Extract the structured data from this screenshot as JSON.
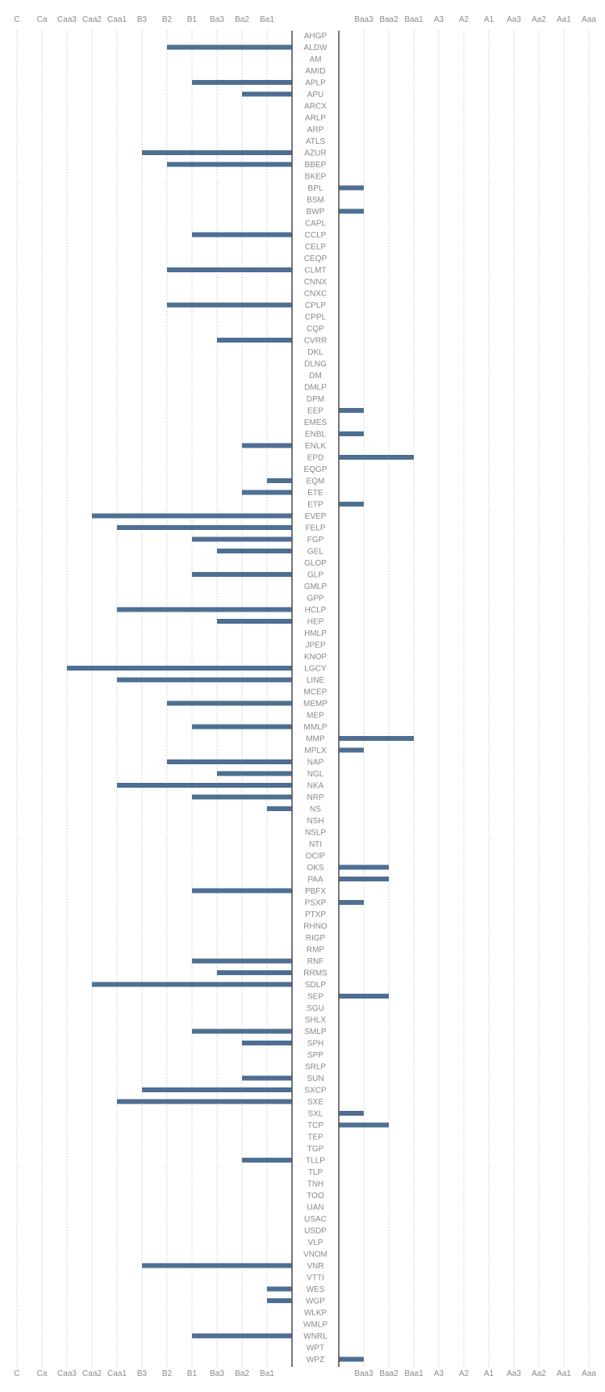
{
  "chart_data": {
    "type": "bar",
    "orientation": "horizontal-diverging",
    "title": "",
    "xlabel": "",
    "ylabel": "",
    "grid": true,
    "bar_color": "#4f6f92",
    "grid_color": "#c8c8c8",
    "axis_color": "#555555",
    "text_color": "#8a8a8a",
    "left_axis": {
      "labels": [
        "C",
        "Ca",
        "Caa3",
        "Caa2",
        "Caa1",
        "B3",
        "B2",
        "B1",
        "Ba3",
        "Ba2",
        "Ba1"
      ]
    },
    "right_axis": {
      "labels": [
        "Baa3",
        "Baa2",
        "Baa1",
        "A3",
        "A2",
        "A1",
        "Aa3",
        "Aa2",
        "Aa1",
        "Aaa"
      ]
    },
    "categories": [
      "AHGP",
      "ALDW",
      "AM",
      "AMID",
      "APLP",
      "APU",
      "ARCX",
      "ARLP",
      "ARP",
      "ATLS",
      "AZUR",
      "BBEP",
      "BKEP",
      "BPL",
      "BSM",
      "BWP",
      "CAPL",
      "CCLP",
      "CELP",
      "CEQP",
      "CLMT",
      "CNNX",
      "CNXC",
      "CPLP",
      "CPPL",
      "CQP",
      "CVRR",
      "DKL",
      "DLNG",
      "DM",
      "DMLP",
      "DPM",
      "EEP",
      "EMES",
      "ENBL",
      "ENLK",
      "EPD",
      "EQGP",
      "EQM",
      "ETE",
      "ETP",
      "EVEP",
      "FELP",
      "FGP",
      "GEL",
      "GLOP",
      "GLP",
      "GMLP",
      "GPP",
      "HCLP",
      "HEP",
      "HMLP",
      "JPEP",
      "KNOP",
      "LGCY",
      "LINE",
      "MCEP",
      "MEMP",
      "MEP",
      "MMLP",
      "MMP",
      "MPLX",
      "NAP",
      "NGL",
      "NKA",
      "NRP",
      "NS",
      "NSH",
      "NSLP",
      "NTI",
      "OCIP",
      "OKS",
      "PAA",
      "PBFX",
      "PSXP",
      "PTXP",
      "RHNO",
      "RIGP",
      "RMP",
      "RNF",
      "RRMS",
      "SDLP",
      "SEP",
      "SGU",
      "SHLX",
      "SMLP",
      "SPH",
      "SPP",
      "SRLP",
      "SUN",
      "SXCP",
      "SXE",
      "SXL",
      "TCP",
      "TEP",
      "TGP",
      "TLLP",
      "TLP",
      "TNH",
      "TOO",
      "UAN",
      "USAC",
      "USDP",
      "VLP",
      "VNOM",
      "VNR",
      "VTTI",
      "WES",
      "WGP",
      "WLKP",
      "WMLP",
      "WNRL",
      "WPT",
      "WPZ"
    ],
    "ratings": [
      null,
      "B2",
      null,
      null,
      "B1",
      "Ba2",
      null,
      null,
      null,
      null,
      "B3",
      "B2",
      null,
      "Baa3",
      null,
      "Baa3",
      null,
      "B1",
      null,
      null,
      "B2",
      null,
      null,
      "B2",
      null,
      null,
      "Ba3",
      null,
      null,
      null,
      null,
      null,
      "Baa3",
      null,
      "Baa3",
      "Ba2",
      "Baa1",
      null,
      "Ba1",
      "Ba2",
      "Baa3",
      "Caa2",
      "Caa1",
      "B1",
      "Ba3",
      null,
      "B1",
      null,
      null,
      "Caa1",
      "Ba3",
      null,
      null,
      null,
      "Caa3",
      "Caa1",
      null,
      "B2",
      null,
      "B1",
      "Baa1",
      "Baa3",
      "B2",
      "Ba3",
      "Caa1",
      "B1",
      "Ba1",
      null,
      null,
      null,
      null,
      "Baa2",
      "Baa2",
      "B1",
      "Baa3",
      null,
      null,
      null,
      null,
      "B1",
      "Ba3",
      "Caa2",
      "Baa2",
      null,
      null,
      "B1",
      "Ba2",
      null,
      null,
      "Ba2",
      "B3",
      "Caa1",
      "Baa3",
      "Baa2",
      null,
      null,
      "Ba2",
      null,
      null,
      null,
      null,
      null,
      null,
      null,
      null,
      "B3",
      null,
      "Ba1",
      "Ba1",
      null,
      null,
      "B1",
      null,
      "Baa3"
    ]
  }
}
